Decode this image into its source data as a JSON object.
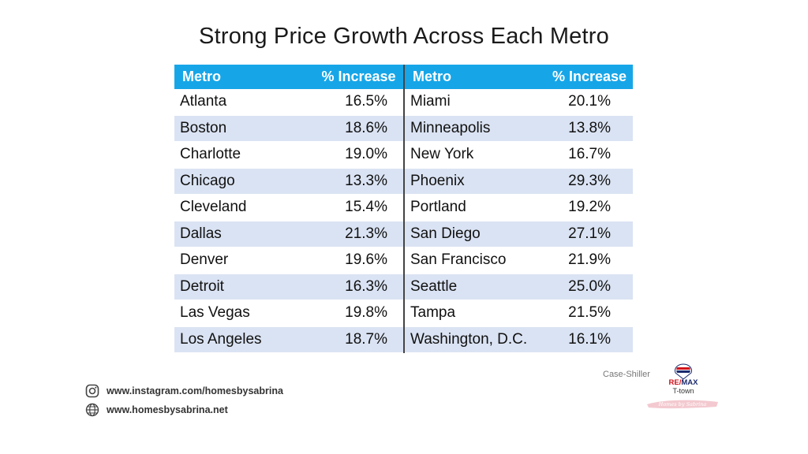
{
  "title": "Strong Price Growth Across Each Metro",
  "table": {
    "headers": [
      "Metro",
      "% Increase",
      "Metro",
      "% Increase"
    ],
    "rows": [
      [
        "Atlanta",
        "16.5%",
        "Miami",
        "20.1%"
      ],
      [
        "Boston",
        "18.6%",
        "Minneapolis",
        "13.8%"
      ],
      [
        "Charlotte",
        "19.0%",
        "New York",
        "16.7%"
      ],
      [
        "Chicago",
        "13.3%",
        "Phoenix",
        "29.3%"
      ],
      [
        "Cleveland",
        "15.4%",
        "Portland",
        "19.2%"
      ],
      [
        "Dallas",
        "21.3%",
        "San Diego",
        "27.1%"
      ],
      [
        "Denver",
        "19.6%",
        "San Francisco",
        "21.9%"
      ],
      [
        "Detroit",
        "16.3%",
        "Seattle",
        "25.0%"
      ],
      [
        "Las Vegas",
        "19.8%",
        "Tampa",
        "21.5%"
      ],
      [
        "Los Angeles",
        "18.7%",
        "Washington, D.C.",
        "16.1%"
      ]
    ]
  },
  "footer": {
    "instagram": "www.instagram.com/homesbysabrina",
    "website": "www.homesbysabrina.net",
    "instagram_icon": "instagram-icon",
    "website_icon": "globe-icon",
    "source": "Case-Shiller",
    "logo_brand_1": "RE/",
    "logo_brand_2": "MAX",
    "logo_sub": "T-town",
    "logo_signature": "Homes by Sabrina"
  },
  "colors": {
    "header": "#16a6e8",
    "shade": "#dae3f3",
    "remax_red": "#d0101a",
    "remax_blue": "#1a2a6c"
  }
}
